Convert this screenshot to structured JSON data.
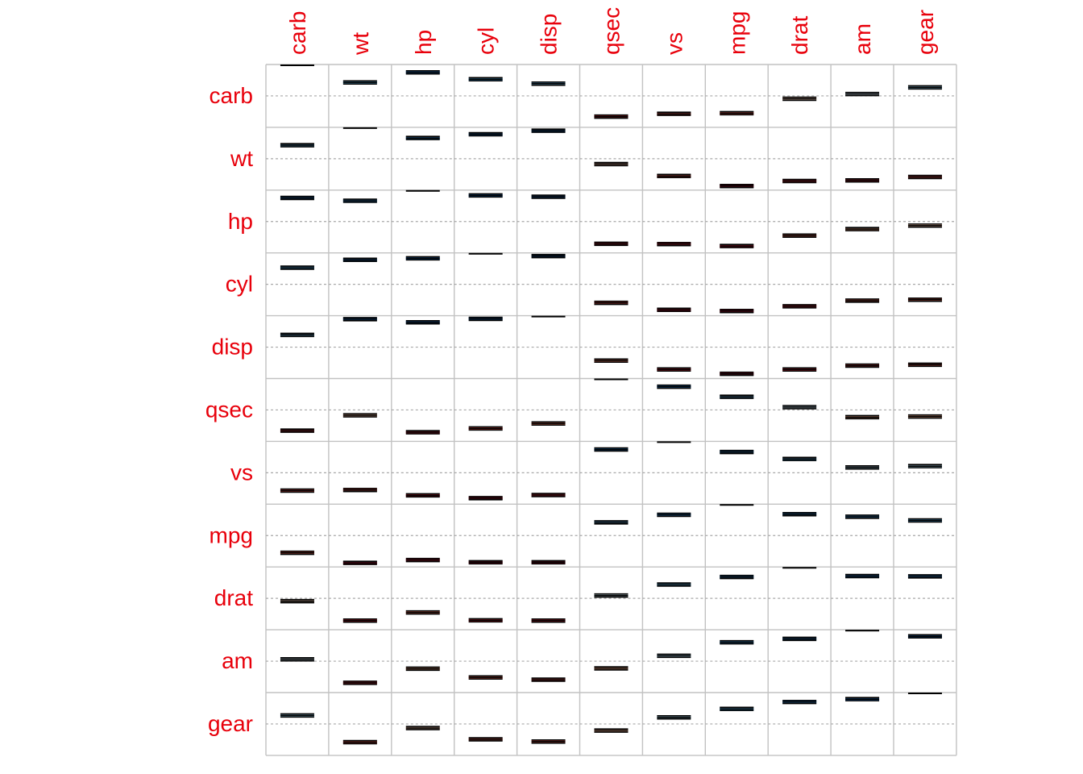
{
  "chart_data": {
    "type": "heatmap",
    "title": "",
    "xlabel": "",
    "ylabel": "",
    "variables": [
      "carb",
      "wt",
      "hp",
      "cyl",
      "disp",
      "qsec",
      "vs",
      "mpg",
      "drat",
      "am",
      "gear"
    ],
    "value_range": [
      -1,
      1
    ],
    "label_color": "#e8000b",
    "grid_color": "#c2c2c2",
    "colors": {
      "strong_positive": "#053061",
      "mid_positive": "#4393c3",
      "weak_positive": "#d1e5f0",
      "neutral": "#f7f7f7",
      "weak_negative": "#fddbc7",
      "mid_negative": "#d6604d",
      "strong_negative": "#67001f"
    },
    "matrix": [
      [
        1.0,
        0.43,
        0.75,
        0.53,
        0.39,
        -0.66,
        -0.57,
        -0.55,
        -0.09,
        0.06,
        0.27
      ],
      [
        0.43,
        1.0,
        0.66,
        0.78,
        0.89,
        -0.17,
        -0.55,
        -0.87,
        -0.71,
        -0.69,
        -0.58
      ],
      [
        0.75,
        0.66,
        1.0,
        0.83,
        0.79,
        -0.71,
        -0.72,
        -0.78,
        -0.45,
        -0.24,
        -0.13
      ],
      [
        0.53,
        0.78,
        0.83,
        1.0,
        0.9,
        -0.59,
        -0.81,
        -0.85,
        -0.7,
        -0.52,
        -0.49
      ],
      [
        0.39,
        0.89,
        0.79,
        0.9,
        1.0,
        -0.43,
        -0.71,
        -0.85,
        -0.71,
        -0.59,
        -0.56
      ],
      [
        -0.66,
        -0.17,
        -0.71,
        -0.59,
        -0.43,
        1.0,
        0.74,
        0.42,
        0.09,
        -0.23,
        -0.21
      ],
      [
        -0.57,
        -0.55,
        -0.72,
        -0.81,
        -0.71,
        0.74,
        1.0,
        0.66,
        0.44,
        0.17,
        0.21
      ],
      [
        -0.55,
        -0.87,
        -0.78,
        -0.85,
        -0.85,
        0.42,
        0.66,
        1.0,
        0.68,
        0.6,
        0.48
      ],
      [
        -0.09,
        -0.71,
        -0.45,
        -0.7,
        -0.71,
        0.09,
        0.44,
        0.68,
        1.0,
        0.71,
        0.7
      ],
      [
        0.06,
        -0.69,
        -0.24,
        -0.52,
        -0.59,
        -0.23,
        0.17,
        0.6,
        0.71,
        1.0,
        0.79
      ],
      [
        0.27,
        -0.58,
        -0.13,
        -0.49,
        -0.56,
        -0.21,
        0.21,
        0.48,
        0.7,
        0.79,
        1.0
      ]
    ]
  }
}
